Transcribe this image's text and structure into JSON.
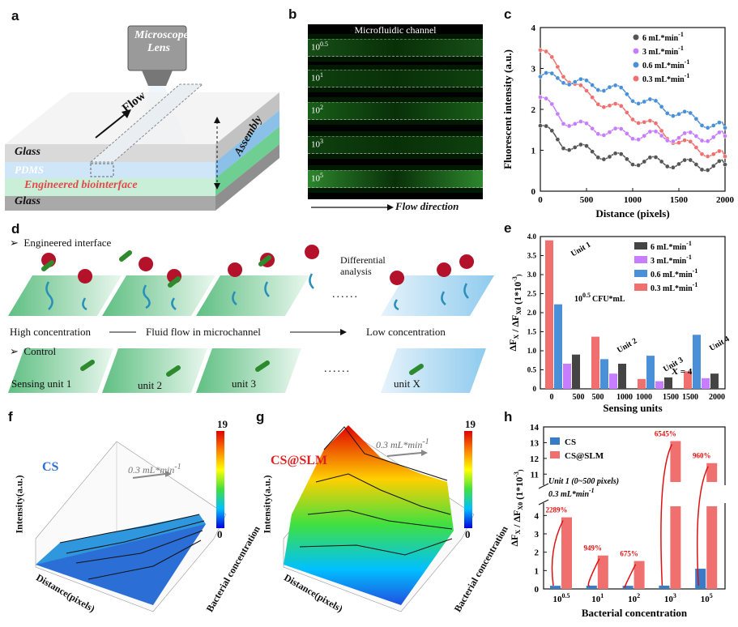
{
  "panels": {
    "a": "a",
    "b": "b",
    "c": "c",
    "d": "d",
    "e": "e",
    "f": "f",
    "g": "g",
    "h": "h"
  },
  "panel_a": {
    "lens_line1": "Microscope",
    "lens_line2": "Lens",
    "flow": "Flow",
    "assembly": "Assembly",
    "glass_top": "Glass",
    "pdms": "PDMS",
    "biointerface": "Engineered biointerface",
    "glass_bottom": "Glass"
  },
  "panel_b": {
    "title": "Microfluidic channel",
    "strips": [
      {
        "base": "10",
        "exp": "0.5"
      },
      {
        "base": "10",
        "exp": "1"
      },
      {
        "base": "10",
        "exp": "2"
      },
      {
        "base": "10",
        "exp": "3"
      },
      {
        "base": "10",
        "exp": "5"
      }
    ],
    "flow_direction": "Flow direction"
  },
  "panel_d": {
    "engineered": "Engineered interface",
    "differential": "Differential",
    "analysis": "analysis",
    "dots": "......",
    "high": "High concentration",
    "fluid": "Fluid flow in microchannel",
    "low": "Low concentration",
    "control": "Control",
    "unit1": "Sensing unit 1",
    "unit2": "unit 2",
    "unit3": "unit 3",
    "unitx": "unit X"
  },
  "panel_f": {
    "label": "CS",
    "flow": "0.3 mL*min",
    "flow_exp": "-1",
    "ylabel": "Intensity(a.u.)",
    "xlabel": "Distance(pixels)",
    "zlabel": "Bacterial concentration",
    "cbar_max": "19",
    "cbar_min": "0"
  },
  "panel_g": {
    "label": "CS@SLM",
    "flow": "0.3 mL*min",
    "flow_exp": "-1",
    "ylabel": "Intensity(a.u.)",
    "xlabel": "Distance(pixels)",
    "zlabel": "Bacterial concentration",
    "cbar_max": "19",
    "cbar_min": "0"
  },
  "chart_data": [
    {
      "id": "c",
      "type": "line",
      "xlabel": "Distance (pixels)",
      "ylabel": "Fluorescent intensity (a.u.)",
      "xlim": [
        0,
        2000
      ],
      "ylim": [
        0,
        4
      ],
      "xticks": [
        0,
        500,
        1000,
        1500,
        2000
      ],
      "yticks": [
        0,
        1,
        2,
        3,
        4
      ],
      "legend_position": "top-right",
      "series": [
        {
          "name": "6 mL*min",
          "exp": "-1",
          "color": "#555555",
          "points": [
            [
              0,
              1.6
            ],
            [
              250,
              1.15
            ],
            [
              500,
              1.0
            ],
            [
              750,
              0.85
            ],
            [
              1000,
              0.75
            ],
            [
              1250,
              0.72
            ],
            [
              1500,
              0.68
            ],
            [
              1750,
              0.62
            ],
            [
              2000,
              0.65
            ]
          ]
        },
        {
          "name": "3 mL*min",
          "exp": "-1",
          "color": "#c77dff",
          "points": [
            [
              0,
              2.3
            ],
            [
              250,
              1.75
            ],
            [
              500,
              1.55
            ],
            [
              750,
              1.45
            ],
            [
              1000,
              1.38
            ],
            [
              1250,
              1.35
            ],
            [
              1500,
              1.32
            ],
            [
              1750,
              1.33
            ],
            [
              2000,
              1.35
            ]
          ]
        },
        {
          "name": "0.6 mL*min",
          "exp": "-1",
          "color": "#4a90d9",
          "points": [
            [
              0,
              2.8
            ],
            [
              250,
              2.75
            ],
            [
              500,
              2.6
            ],
            [
              750,
              2.55
            ],
            [
              1000,
              2.3
            ],
            [
              1250,
              2.1
            ],
            [
              1500,
              1.9
            ],
            [
              1750,
              1.7
            ],
            [
              2000,
              1.55
            ]
          ]
        },
        {
          "name": "0.3 mL*min",
          "exp": "-1",
          "color": "#f07070",
          "points": [
            [
              0,
              3.45
            ],
            [
              250,
              2.9
            ],
            [
              500,
              2.35
            ],
            [
              750,
              2.1
            ],
            [
              1000,
              1.85
            ],
            [
              1250,
              1.55
            ],
            [
              1500,
              1.2
            ],
            [
              1750,
              1.0
            ],
            [
              2000,
              0.85
            ]
          ]
        }
      ]
    },
    {
      "id": "e",
      "type": "bar",
      "xlabel": "Sensing units",
      "ylabel": "ΔF",
      "ylabel_rest": " / ΔF",
      "ylabel_units": "(1*10",
      "ylim": [
        0,
        4.0
      ],
      "yticks": [
        0,
        0.5,
        1.0,
        1.5,
        2.0,
        2.5,
        3.0,
        3.5,
        4.0
      ],
      "ytick_labels": [
        "0",
        "0.5",
        "1.0",
        "1.5",
        "2.0",
        "2.5",
        "3.0",
        "3.5",
        "4.0"
      ],
      "categories": [
        "Unit 1",
        "Unit 2",
        "Unit 3",
        "Unit 4"
      ],
      "xtick_labels": [
        "0",
        "500",
        "500",
        "1000",
        "1000",
        "1500",
        "1500",
        "2000"
      ],
      "series": [
        {
          "name": "0.3 mL*min",
          "exp": "-1",
          "color": "#f07070",
          "values": [
            3.9,
            1.37,
            0.26,
            0.46
          ]
        },
        {
          "name": "0.6 mL*min",
          "exp": "-1",
          "color": "#4a90d9",
          "values": [
            2.22,
            0.78,
            0.87,
            1.42
          ]
        },
        {
          "name": "3 mL*min",
          "exp": "-1",
          "color": "#c77dff",
          "values": [
            0.66,
            0.4,
            0.2,
            0.28
          ]
        },
        {
          "name": "6 mL*min",
          "exp": "-1",
          "color": "#444444",
          "values": [
            0.9,
            0.66,
            0.3,
            0.4
          ]
        }
      ],
      "annotations": {
        "concentration": "10",
        "conc_exp": "0.5",
        "conc_unit": " CFU*mL",
        "x_eq": "X = 4"
      }
    },
    {
      "id": "h",
      "type": "bar",
      "xlabel": "Bacterial concentration",
      "ylabel": "ΔF",
      "ylabel_rest": " / ΔF",
      "ylabel_units": "(1*10",
      "categories": [
        {
          "base": "10",
          "exp": "0.5"
        },
        {
          "base": "10",
          "exp": "1"
        },
        {
          "base": "10",
          "exp": "2"
        },
        {
          "base": "10",
          "exp": "3"
        },
        {
          "base": "10",
          "exp": "5"
        }
      ],
      "ytick_labels": [
        "0",
        "1",
        "2",
        "3",
        "4",
        "11",
        "12",
        "13",
        "14"
      ],
      "axis_break": [
        4.5,
        10.5
      ],
      "series": [
        {
          "name": "CS",
          "color": "#3a7bc8",
          "values": [
            0.17,
            0.18,
            0.17,
            0.18,
            1.1
          ]
        },
        {
          "name": "CS@SLM",
          "color": "#f07070",
          "values": [
            3.9,
            1.82,
            1.52,
            13.1,
            11.7
          ]
        }
      ],
      "percent_labels": [
        "2289%",
        "949%",
        "675%",
        "6545%",
        "960%"
      ],
      "note_line1": "Unit 1 (0~500 pixels)",
      "note_line2": "0.3 mL*min",
      "note_exp": "-1"
    }
  ]
}
